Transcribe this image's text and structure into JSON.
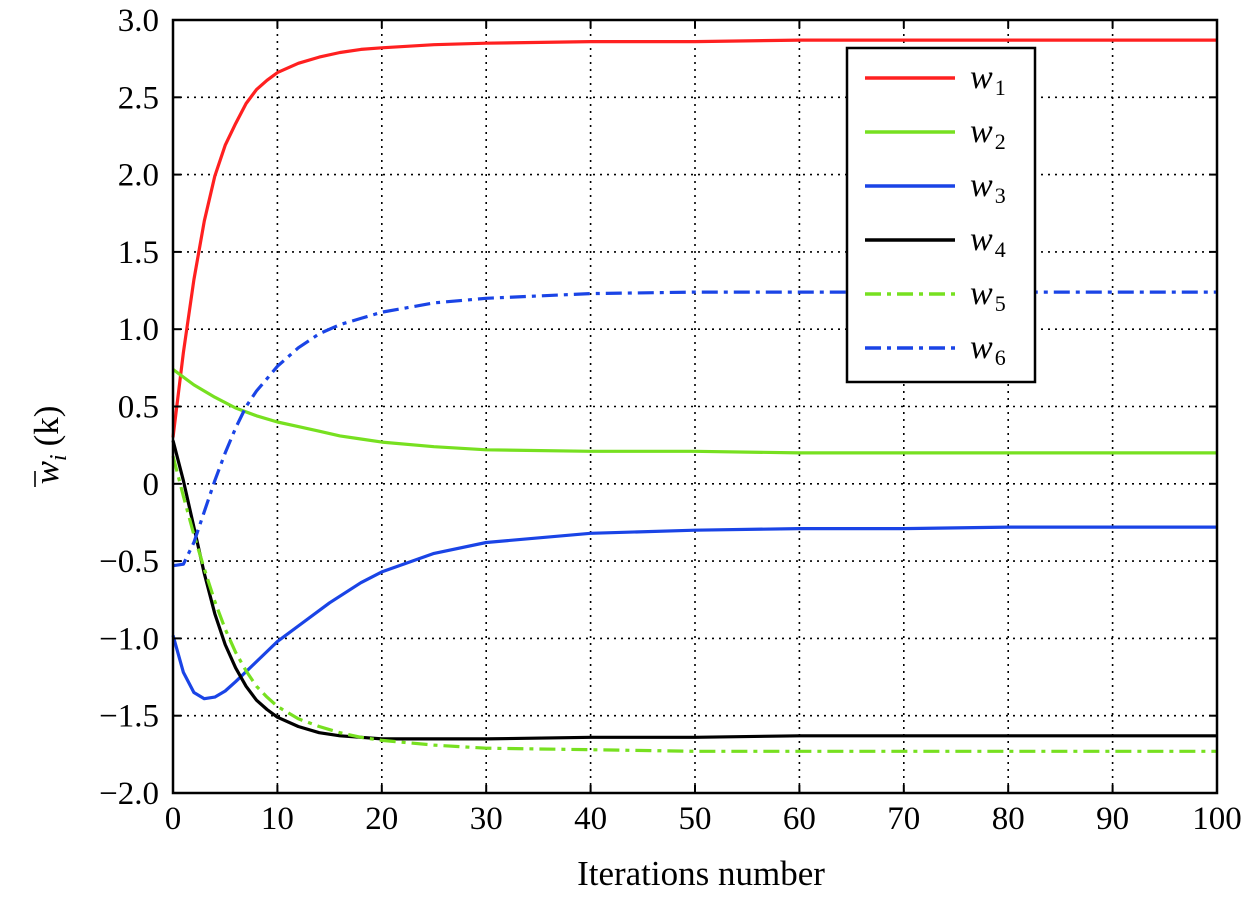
{
  "chart_data": {
    "type": "line",
    "title": "",
    "xlabel": "Iterations number",
    "ylabel": "w̄_i (k)",
    "ylabel_parts": {
      "base": "w",
      "sub": "i",
      "arg": "(k)"
    },
    "xlim": [
      0,
      100
    ],
    "ylim": [
      -2.0,
      3.0
    ],
    "xticks": [
      0,
      10,
      20,
      30,
      40,
      50,
      60,
      70,
      80,
      90,
      100
    ],
    "xtick_labels": [
      "0",
      "10",
      "20",
      "30",
      "40",
      "50",
      "60",
      "70",
      "80",
      "90",
      "100"
    ],
    "yticks": [
      -2.0,
      -1.5,
      -1.0,
      -0.5,
      0,
      0.5,
      1.0,
      1.5,
      2.0,
      2.5,
      3.0
    ],
    "ytick_labels": [
      "−2.0",
      "−1.5",
      "−1.0",
      "−0.5",
      "0",
      "0.5",
      "1.0",
      "1.5",
      "2.0",
      "2.5",
      "3.0"
    ],
    "grid": true,
    "grid_style": "dotted",
    "legend_position": "top-right",
    "series": [
      {
        "name": "w1",
        "legend_base": "w",
        "legend_sub": "1",
        "color": "#ff2020",
        "dash": "solid",
        "x": [
          0,
          1,
          2,
          3,
          4,
          5,
          6,
          7,
          8,
          9,
          10,
          12,
          14,
          16,
          18,
          20,
          25,
          30,
          40,
          50,
          60,
          70,
          80,
          90,
          100
        ],
        "y": [
          0.3,
          0.85,
          1.32,
          1.7,
          1.99,
          2.19,
          2.33,
          2.46,
          2.55,
          2.61,
          2.66,
          2.72,
          2.76,
          2.79,
          2.81,
          2.82,
          2.84,
          2.85,
          2.86,
          2.86,
          2.87,
          2.87,
          2.87,
          2.87,
          2.87
        ]
      },
      {
        "name": "w2",
        "legend_base": "w",
        "legend_sub": "2",
        "color": "#77e020",
        "dash": "solid",
        "x": [
          0,
          2,
          4,
          6,
          8,
          10,
          12,
          14,
          16,
          18,
          20,
          25,
          30,
          40,
          50,
          60,
          70,
          80,
          90,
          100
        ],
        "y": [
          0.74,
          0.64,
          0.56,
          0.49,
          0.44,
          0.4,
          0.37,
          0.34,
          0.31,
          0.29,
          0.27,
          0.24,
          0.22,
          0.21,
          0.21,
          0.2,
          0.2,
          0.2,
          0.2,
          0.2
        ]
      },
      {
        "name": "w3",
        "legend_base": "w",
        "legend_sub": "3",
        "color": "#1a44e6",
        "dash": "solid",
        "x": [
          0,
          1,
          2,
          3,
          4,
          5,
          6,
          8,
          10,
          12,
          15,
          18,
          20,
          25,
          30,
          40,
          50,
          60,
          70,
          80,
          90,
          100
        ],
        "y": [
          -0.98,
          -1.22,
          -1.35,
          -1.39,
          -1.38,
          -1.34,
          -1.28,
          -1.15,
          -1.02,
          -0.92,
          -0.77,
          -0.64,
          -0.57,
          -0.45,
          -0.38,
          -0.32,
          -0.3,
          -0.29,
          -0.29,
          -0.28,
          -0.28,
          -0.28
        ]
      },
      {
        "name": "w4",
        "legend_base": "w",
        "legend_sub": "4",
        "color": "#000000",
        "dash": "solid",
        "x": [
          0,
          1,
          2,
          3,
          4,
          5,
          6,
          7,
          8,
          9,
          10,
          12,
          14,
          16,
          18,
          20,
          25,
          30,
          40,
          50,
          60,
          70,
          80,
          90,
          100
        ],
        "y": [
          0.28,
          0.02,
          -0.28,
          -0.58,
          -0.84,
          -1.04,
          -1.19,
          -1.31,
          -1.4,
          -1.46,
          -1.51,
          -1.57,
          -1.61,
          -1.63,
          -1.64,
          -1.65,
          -1.65,
          -1.65,
          -1.64,
          -1.64,
          -1.63,
          -1.63,
          -1.63,
          -1.63,
          -1.63
        ]
      },
      {
        "name": "w5",
        "legend_base": "w",
        "legend_sub": "5",
        "color": "#77e020",
        "dash": "dashdot",
        "x": [
          0,
          1,
          2,
          3,
          4,
          5,
          6,
          7,
          8,
          9,
          10,
          12,
          14,
          16,
          18,
          20,
          25,
          30,
          40,
          50,
          60,
          70,
          80,
          90,
          100
        ],
        "y": [
          0.18,
          -0.08,
          -0.33,
          -0.55,
          -0.76,
          -0.94,
          -1.09,
          -1.21,
          -1.31,
          -1.38,
          -1.44,
          -1.52,
          -1.57,
          -1.61,
          -1.64,
          -1.66,
          -1.69,
          -1.71,
          -1.72,
          -1.73,
          -1.73,
          -1.73,
          -1.73,
          -1.73,
          -1.73
        ]
      },
      {
        "name": "w6",
        "legend_base": "w",
        "legend_sub": "6",
        "color": "#1a44e6",
        "dash": "dashdot",
        "x": [
          0,
          1,
          2,
          3,
          4,
          5,
          6,
          7,
          8,
          9,
          10,
          12,
          14,
          16,
          18,
          20,
          25,
          30,
          40,
          50,
          60,
          70,
          80,
          90,
          100
        ],
        "y": [
          -0.53,
          -0.52,
          -0.38,
          -0.18,
          0.02,
          0.2,
          0.36,
          0.5,
          0.6,
          0.68,
          0.76,
          0.88,
          0.97,
          1.03,
          1.07,
          1.11,
          1.17,
          1.2,
          1.23,
          1.24,
          1.24,
          1.24,
          1.24,
          1.24,
          1.24
        ]
      }
    ]
  }
}
